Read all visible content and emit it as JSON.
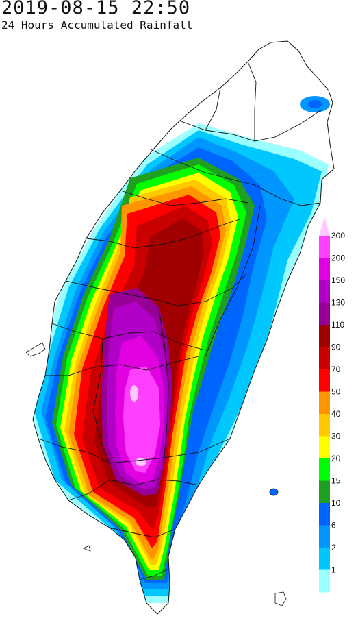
{
  "header": {
    "datetime": "2019-08-15 22:50",
    "subtitle": "24 Hours Accumulated Rainfall"
  },
  "legend": {
    "levels": [
      {
        "label": "300",
        "color": "#ff40ff"
      },
      {
        "label": "200",
        "color": "#e000e0"
      },
      {
        "label": "150",
        "color": "#b000c8"
      },
      {
        "label": "130",
        "color": "#960096"
      },
      {
        "label": "110",
        "color": "#a00000"
      },
      {
        "label": "90",
        "color": "#c80000"
      },
      {
        "label": "70",
        "color": "#ff0000"
      },
      {
        "label": "50",
        "color": "#ff9600"
      },
      {
        "label": "40",
        "color": "#ffc800"
      },
      {
        "label": "30",
        "color": "#ffff00"
      },
      {
        "label": "20",
        "color": "#00ff00"
      },
      {
        "label": "15",
        "color": "#20a020"
      },
      {
        "label": "10",
        "color": "#0064ff"
      },
      {
        "label": "6",
        "color": "#0096ff"
      },
      {
        "label": "2",
        "color": "#00c8ff"
      },
      {
        "label": "1",
        "color": "#9bffff"
      }
    ],
    "top_color": "#ffc8ff"
  }
}
